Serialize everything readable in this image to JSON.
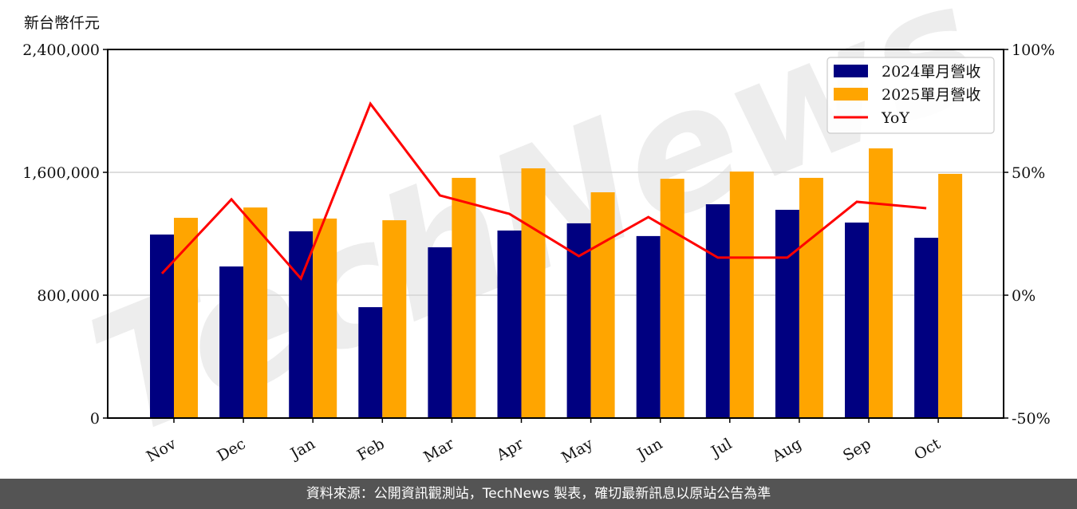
{
  "chart_data": {
    "type": "bar+line",
    "title": "",
    "ylabel": "新台幣仟元",
    "y2label": "",
    "categories": [
      "Nov",
      "Dec",
      "Jan",
      "Feb",
      "Mar",
      "Apr",
      "May",
      "Jun",
      "Jul",
      "Aug",
      "Sep",
      "Oct"
    ],
    "series": [
      {
        "name": "2024單月營收",
        "type": "bar",
        "axis": "left",
        "color": "#000080",
        "values": [
          1195000,
          987000,
          1216000,
          722000,
          1112000,
          1221000,
          1268000,
          1185000,
          1392000,
          1356000,
          1273000,
          1174000
        ]
      },
      {
        "name": "2025單月營收",
        "type": "bar",
        "axis": "left",
        "color": "#FFA500",
        "values": [
          1304000,
          1371000,
          1299000,
          1288000,
          1564000,
          1626000,
          1470000,
          1558000,
          1605000,
          1564000,
          1756000,
          1590000
        ]
      },
      {
        "name": "YoY",
        "type": "line",
        "axis": "right",
        "color": "#FF0000",
        "values": [
          8.8,
          39.0,
          6.8,
          77.9,
          40.6,
          33.1,
          15.9,
          31.8,
          15.3,
          15.3,
          38.0,
          35.4
        ]
      }
    ],
    "ylim": [
      0,
      2400000
    ],
    "yticks": [
      0,
      800000,
      1600000,
      2400000
    ],
    "ytick_labels": [
      "0",
      "800,000",
      "1,600,000",
      "2,400,000"
    ],
    "y2lim": [
      -50,
      100
    ],
    "y2ticks": [
      -50,
      0,
      50,
      100
    ],
    "y2tick_labels": [
      "-50%",
      "0%",
      "50%",
      "100%"
    ],
    "grid": "horizontal",
    "legend_position": "upper right",
    "watermark": "TechNews"
  },
  "unit_label": "新台幣仟元",
  "legend": [
    {
      "label": "2024單月營收",
      "color": "#000080",
      "kind": "patch"
    },
    {
      "label": "2025單月營收",
      "color": "#FFA500",
      "kind": "patch"
    },
    {
      "label": "YoY",
      "color": "#FF0000",
      "kind": "line"
    }
  ],
  "footer": {
    "text": "資料來源：公開資訊觀測站，TechNews 製表，確切最新訊息以原站公告為準"
  }
}
